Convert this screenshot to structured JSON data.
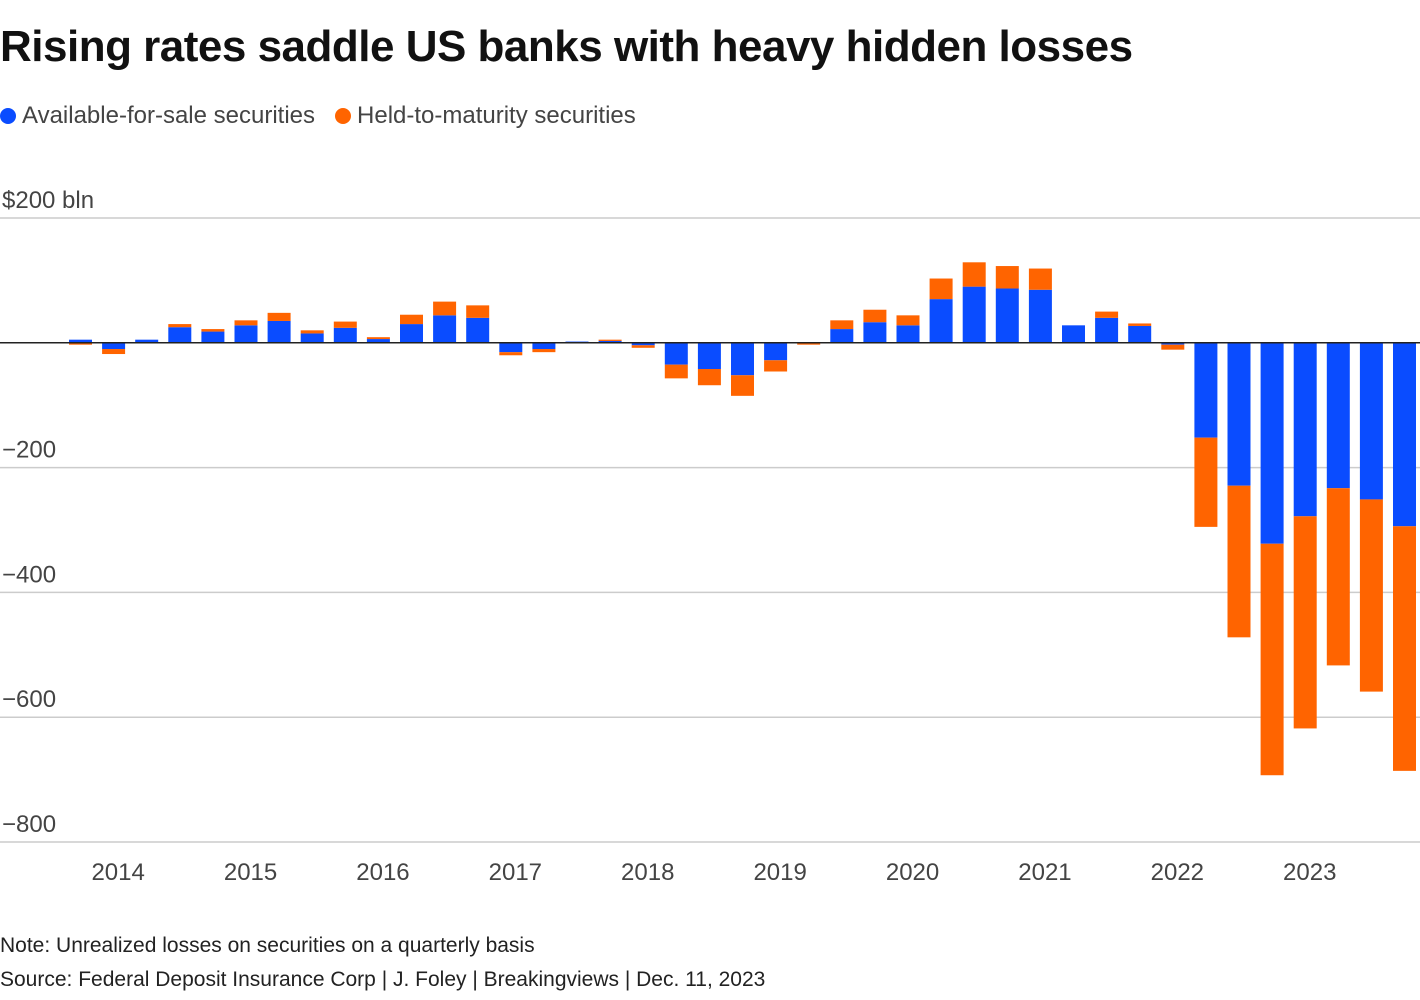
{
  "title": "Rising rates saddle US banks with heavy hidden losses",
  "colors": {
    "afs": "#0a4cff",
    "htm": "#ff6400",
    "grid": "#cccccc",
    "zero": "#222222"
  },
  "legend": [
    {
      "label": "Available-for-sale securities",
      "color": "#0a4cff"
    },
    {
      "label": "Held-to-maturity securities",
      "color": "#ff6400"
    }
  ],
  "note": "Note: Unrealized losses on securities on a quarterly basis",
  "source": "Source: Federal Deposit Insurance Corp | J. Foley | Breakingviews | Dec. 11, 2023",
  "chart_data": {
    "type": "bar",
    "stacked": true,
    "ylim": [
      -800,
      200
    ],
    "yticks": [
      200,
      -200,
      -400,
      -600,
      -800
    ],
    "ytick_labels": [
      "$200 bln",
      "−200",
      "−400",
      "−600",
      "−800"
    ],
    "grid": true,
    "year_labels": [
      "2014",
      "2015",
      "2016",
      "2017",
      "2018",
      "2019",
      "2020",
      "2021",
      "2022",
      "2023"
    ],
    "categories": [
      "Q4 2013",
      "Q1 2014",
      "Q2 2014",
      "Q3 2014",
      "Q4 2014",
      "Q1 2015",
      "Q2 2015",
      "Q3 2015",
      "Q4 2015",
      "Q1 2016",
      "Q2 2016",
      "Q3 2016",
      "Q4 2016",
      "Q1 2017",
      "Q2 2017",
      "Q3 2017",
      "Q4 2017",
      "Q1 2018",
      "Q2 2018",
      "Q3 2018",
      "Q4 2018",
      "Q1 2019",
      "Q2 2019",
      "Q3 2019",
      "Q4 2019",
      "Q1 2020",
      "Q2 2020",
      "Q3 2020",
      "Q4 2020",
      "Q1 2021",
      "Q2 2021",
      "Q3 2021",
      "Q4 2021",
      "Q1 2022",
      "Q2 2022",
      "Q3 2022",
      "Q4 2022",
      "Q1 2023",
      "Q2 2023",
      "Q3 2023",
      "Q4 2023"
    ],
    "series": [
      {
        "name": "Available-for-sale securities",
        "values": [
          5,
          -10,
          5,
          25,
          18,
          28,
          35,
          15,
          24,
          6,
          30,
          44,
          40,
          -15,
          -10,
          2,
          3,
          -4,
          -35,
          -42,
          -52,
          -28,
          0,
          22,
          33,
          28,
          70,
          90,
          87,
          85,
          28,
          40,
          27,
          -3,
          -152,
          -229,
          -322,
          -278,
          -233,
          -251,
          -294
        ]
      },
      {
        "name": "Held-to-maturity securities",
        "values": [
          -3,
          -8,
          0,
          5,
          4,
          8,
          13,
          5,
          10,
          3,
          15,
          22,
          20,
          -5,
          -5,
          0,
          2,
          -4,
          -22,
          -26,
          -33,
          -18,
          -3,
          14,
          20,
          16,
          33,
          39,
          36,
          34,
          0,
          10,
          4,
          -8,
          -143,
          -243,
          -371,
          -340,
          -284,
          -308,
          -392
        ]
      }
    ]
  }
}
